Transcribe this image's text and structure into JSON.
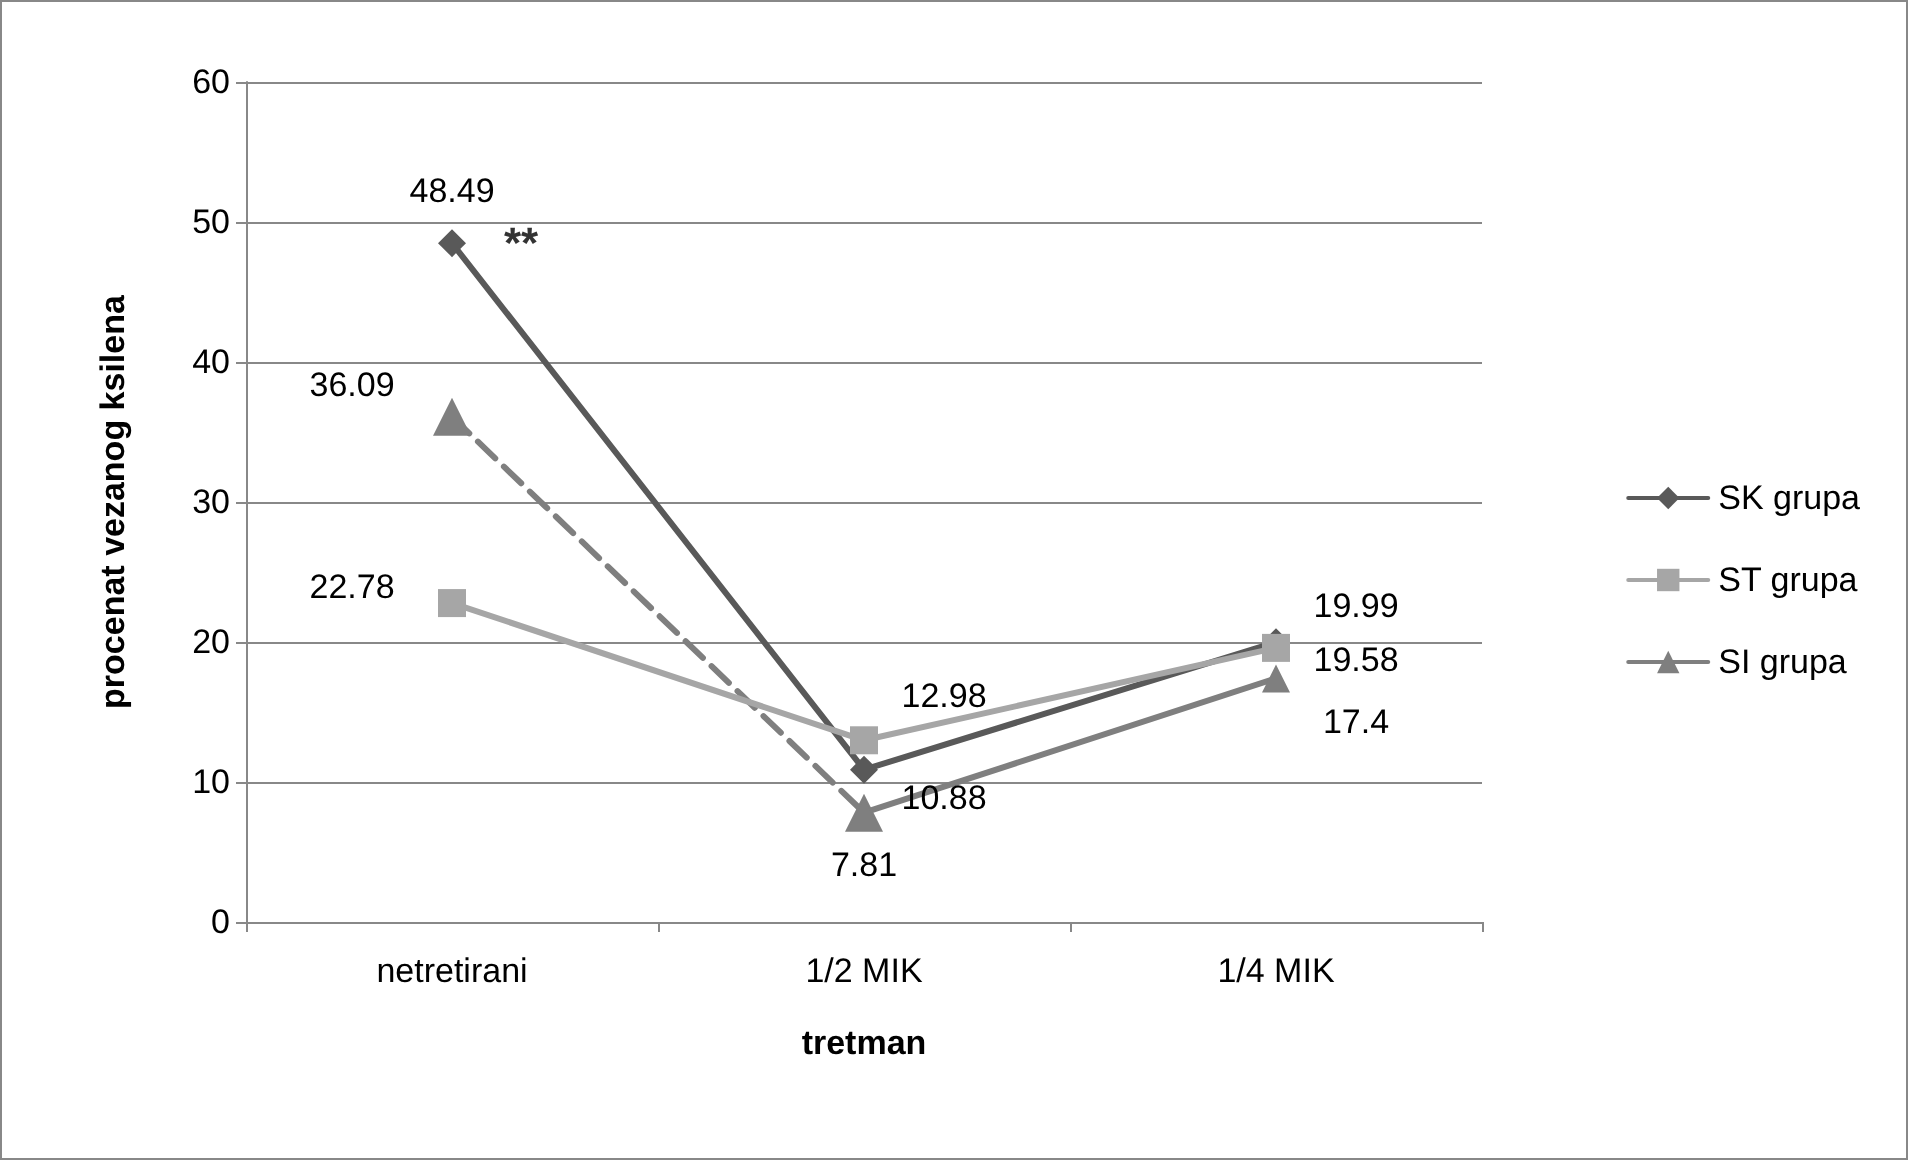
{
  "chart_data": {
    "type": "line",
    "xlabel": "tretman",
    "ylabel": "procenat vezanog ksilena",
    "categories": [
      "netretirani",
      "1/2 MIK",
      "1/4 MIK"
    ],
    "ylim": [
      0,
      60
    ],
    "yticks": [
      0,
      10,
      20,
      30,
      40,
      50,
      60
    ],
    "grid": "y",
    "legend": "right",
    "annotations": [
      {
        "text": "**",
        "x": "netretirani",
        "y": 48.49
      }
    ],
    "series": [
      {
        "name": "SK grupa",
        "color": "#595959",
        "marker": "diamond",
        "line_style": "solid",
        "values": [
          48.49,
          10.88,
          19.99
        ],
        "value_labels": [
          "48.49",
          "10.88",
          "19.99"
        ]
      },
      {
        "name": "ST grupa",
        "color": "#a6a6a6",
        "marker": "square",
        "line_style": "solid",
        "values": [
          22.78,
          12.98,
          19.58
        ],
        "value_labels": [
          "22.78",
          "12.98",
          "19.58"
        ]
      },
      {
        "name": "SI grupa",
        "color": "#7f7f7f",
        "marker": "triangle",
        "line_style": "solid",
        "values": [
          null,
          7.81,
          17.4
        ],
        "value_labels": [
          null,
          "7.81",
          "17.4"
        ]
      },
      {
        "color": "#7f7f7f",
        "marker": "triangle",
        "line_style": "dashed",
        "values": [
          36.09,
          7.81,
          null
        ],
        "value_labels": [
          "36.09",
          null,
          null
        ]
      }
    ]
  }
}
